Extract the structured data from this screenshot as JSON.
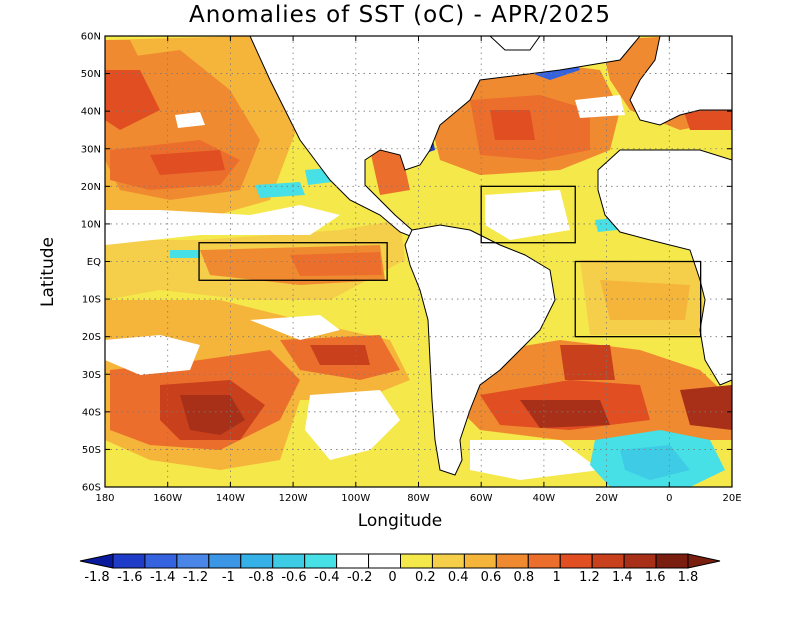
{
  "title": "Anomalies of SST (oC) - APR/2025",
  "axes": {
    "xlabel": "Longitude",
    "ylabel": "Latitude",
    "lon_ticks": [
      "180",
      "160W",
      "140W",
      "120W",
      "100W",
      "80W",
      "60W",
      "40W",
      "20W",
      "0",
      "20E"
    ],
    "lat_ticks": [
      "60N",
      "50N",
      "40N",
      "30N",
      "20N",
      "10N",
      "EQ",
      "10S",
      "20S",
      "30S",
      "40S",
      "50S",
      "60S"
    ]
  },
  "map_data": {
    "extent": {
      "lon_min": -180,
      "lon_max": 20,
      "lat_min": -60,
      "lat_max": 60
    },
    "grid": "dotted",
    "boxes": [
      {
        "lon": [
          -150,
          -90
        ],
        "lat": [
          -5,
          5
        ]
      },
      {
        "lon": [
          -60,
          -30
        ],
        "lat": [
          5,
          20
        ]
      },
      {
        "lon": [
          -30,
          10
        ],
        "lat": [
          -20,
          0
        ]
      }
    ]
  },
  "colorbar": {
    "labels": [
      "-1.8",
      "-1.6",
      "-1.4",
      "-1.2",
      "-1",
      "-0.8",
      "-0.6",
      "-0.4",
      "-0.2",
      "0",
      "0.2",
      "0.4",
      "0.6",
      "0.8",
      "1",
      "1.2",
      "1.4",
      "1.6",
      "1.8"
    ],
    "colors": [
      "#0a1a9c",
      "#1f3cc8",
      "#3563e0",
      "#4a86e8",
      "#3c96e6",
      "#35b1e8",
      "#3ecbe6",
      "#46e0e6",
      "#ffffff",
      "#ffffff",
      "#f5e84a",
      "#f5cf4a",
      "#f5b43a",
      "#f08a30",
      "#ec6e2c",
      "#e04e22",
      "#c8401c",
      "#a83018",
      "#7a1e10"
    ]
  }
}
